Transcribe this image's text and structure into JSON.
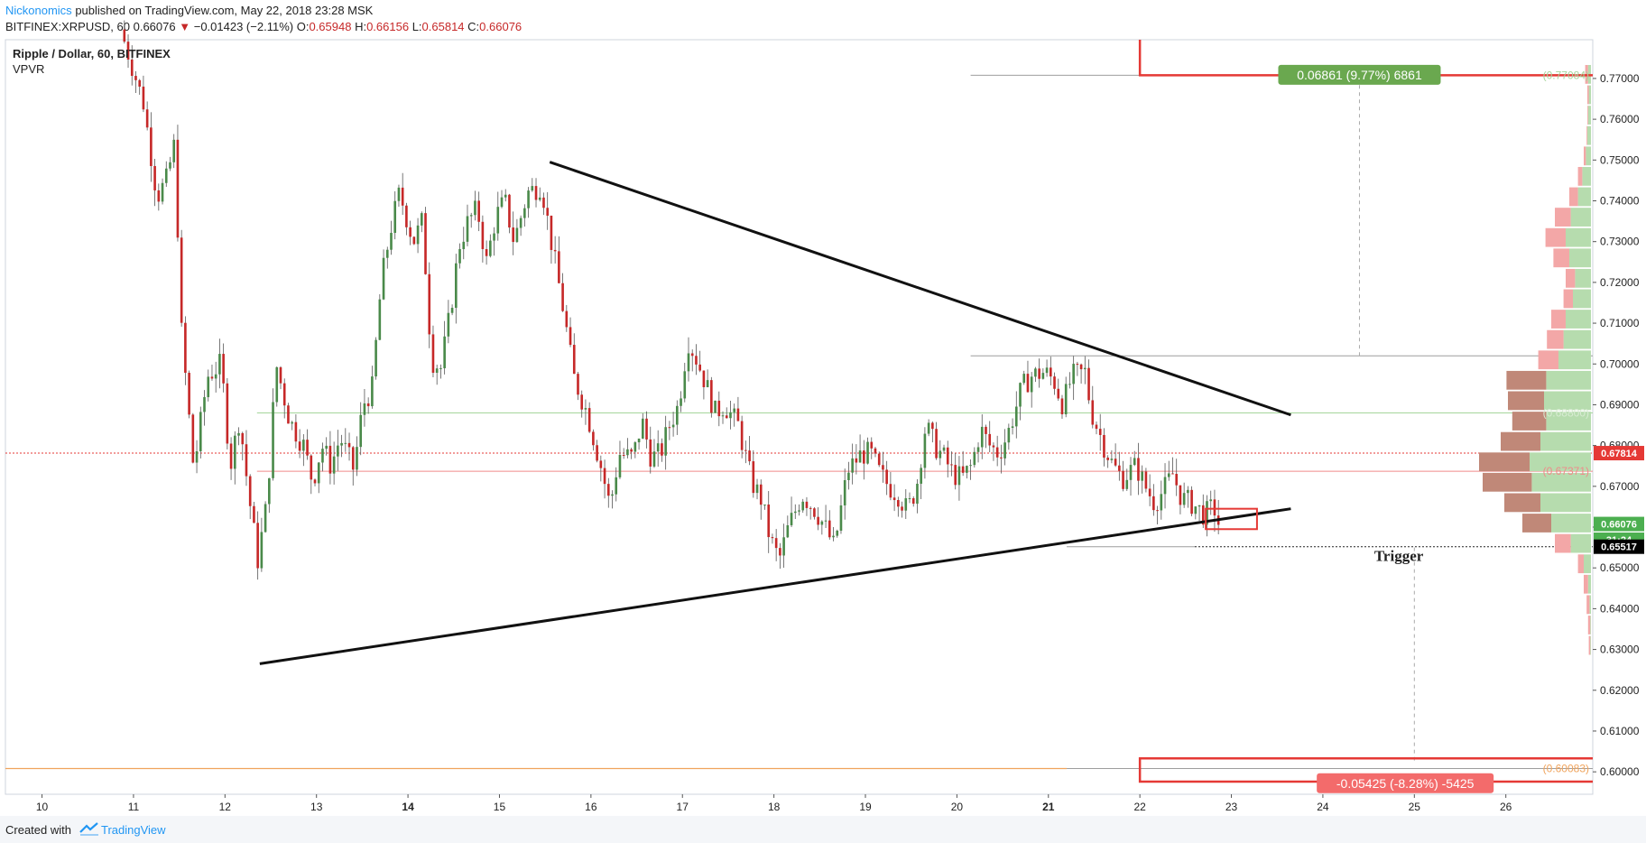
{
  "header": {
    "author": "Nickonomics",
    "published": "published on TradingView.com, May 22, 2018 23:28 MSK",
    "symbol": "BITFINEX:XRPUSD, 60",
    "change": "0.66076",
    "change_arrow": "▼",
    "change_delta": "−0.01423 (−2.11%)",
    "ohlc": {
      "o_label": "O:",
      "o": "0.65948",
      "h_label": "H:",
      "h": "0.66156",
      "l_label": "L:",
      "l": "0.65814",
      "c_label": "C:",
      "c": "0.66076"
    }
  },
  "legend": {
    "title": "Ripple / Dollar, 60, BITFINEX",
    "indicator": "VPVR"
  },
  "footer": {
    "created_with": "Created with",
    "brand": "TradingView"
  },
  "colors": {
    "up": "#4a8a4a",
    "down": "#c62828",
    "accent_green": "#6aa84f",
    "accent_red": "#e53935",
    "vp_green": "#b6dcae",
    "vp_red": "#f3a7a7",
    "vp_brown": "#c08878"
  },
  "chart_data": {
    "type": "candlestick",
    "title": "Ripple / Dollar, 60, BITFINEX",
    "y_range": [
      0.5945,
      0.7795
    ],
    "x_range": [
      9.6,
      26.95
    ],
    "y_ticks": [
      "0.77000",
      "0.76000",
      "0.75000",
      "0.74000",
      "0.73000",
      "0.72000",
      "0.71000",
      "0.70000",
      "0.69000",
      "0.68000",
      "0.67000",
      "0.66000",
      "0.65000",
      "0.64000",
      "0.63000",
      "0.62000",
      "0.61000",
      "0.60000"
    ],
    "x_ticks": [
      {
        "value": 10,
        "label": "10"
      },
      {
        "value": 11,
        "label": "11"
      },
      {
        "value": 12,
        "label": "12"
      },
      {
        "value": 13,
        "label": "13"
      },
      {
        "value": 14,
        "label": "14"
      },
      {
        "value": 15,
        "label": "15"
      },
      {
        "value": 16,
        "label": "16"
      },
      {
        "value": 17,
        "label": "17"
      },
      {
        "value": 18,
        "label": "18"
      },
      {
        "value": 19,
        "label": "19"
      },
      {
        "value": 20,
        "label": "20"
      },
      {
        "value": 21,
        "label": "21"
      },
      {
        "value": 22,
        "label": "22"
      },
      {
        "value": 23,
        "label": "23"
      },
      {
        "value": 24,
        "label": "24"
      },
      {
        "value": 25,
        "label": "25"
      },
      {
        "value": 26,
        "label": "26"
      }
    ],
    "price_path": [
      [
        10.9,
        0.782
      ],
      [
        11.0,
        0.775
      ],
      [
        11.15,
        0.764
      ],
      [
        11.3,
        0.741
      ],
      [
        11.4,
        0.745
      ],
      [
        11.5,
        0.755
      ],
      [
        11.55,
        0.712
      ],
      [
        11.7,
        0.674
      ],
      [
        11.85,
        0.697
      ],
      [
        12.0,
        0.7
      ],
      [
        12.1,
        0.675
      ],
      [
        12.2,
        0.687
      ],
      [
        12.3,
        0.668
      ],
      [
        12.4,
        0.652
      ],
      [
        12.5,
        0.666
      ],
      [
        12.6,
        0.7
      ],
      [
        12.75,
        0.686
      ],
      [
        12.9,
        0.68
      ],
      [
        13.0,
        0.671
      ],
      [
        13.1,
        0.68
      ],
      [
        13.2,
        0.675
      ],
      [
        13.3,
        0.682
      ],
      [
        13.45,
        0.674
      ],
      [
        13.55,
        0.69
      ],
      [
        13.65,
        0.694
      ],
      [
        13.75,
        0.72
      ],
      [
        13.85,
        0.733
      ],
      [
        13.95,
        0.742
      ],
      [
        14.1,
        0.73
      ],
      [
        14.2,
        0.735
      ],
      [
        14.3,
        0.701
      ],
      [
        14.4,
        0.699
      ],
      [
        14.5,
        0.712
      ],
      [
        14.6,
        0.729
      ],
      [
        14.7,
        0.735
      ],
      [
        14.8,
        0.738
      ],
      [
        14.9,
        0.725
      ],
      [
        15.0,
        0.736
      ],
      [
        15.1,
        0.74
      ],
      [
        15.2,
        0.73
      ],
      [
        15.35,
        0.742
      ],
      [
        15.5,
        0.744
      ],
      [
        15.6,
        0.731
      ],
      [
        15.75,
        0.712
      ],
      [
        15.85,
        0.697
      ],
      [
        16.0,
        0.688
      ],
      [
        16.15,
        0.675
      ],
      [
        16.25,
        0.665
      ],
      [
        16.35,
        0.678
      ],
      [
        16.5,
        0.677
      ],
      [
        16.6,
        0.686
      ],
      [
        16.7,
        0.677
      ],
      [
        16.8,
        0.678
      ],
      [
        16.9,
        0.685
      ],
      [
        17.0,
        0.69
      ],
      [
        17.1,
        0.706
      ],
      [
        17.2,
        0.701
      ],
      [
        17.3,
        0.695
      ],
      [
        17.4,
        0.688
      ],
      [
        17.5,
        0.69
      ],
      [
        17.65,
        0.685
      ],
      [
        17.8,
        0.671
      ],
      [
        17.9,
        0.667
      ],
      [
        18.0,
        0.657
      ],
      [
        18.1,
        0.652
      ],
      [
        18.2,
        0.66
      ],
      [
        18.35,
        0.668
      ],
      [
        18.5,
        0.664
      ],
      [
        18.6,
        0.66
      ],
      [
        18.7,
        0.655
      ],
      [
        18.85,
        0.674
      ],
      [
        19.0,
        0.678
      ],
      [
        19.1,
        0.678
      ],
      [
        19.2,
        0.673
      ],
      [
        19.3,
        0.67
      ],
      [
        19.4,
        0.668
      ],
      [
        19.5,
        0.664
      ],
      [
        19.6,
        0.67
      ],
      [
        19.7,
        0.685
      ],
      [
        19.8,
        0.68
      ],
      [
        19.9,
        0.677
      ],
      [
        20.0,
        0.673
      ],
      [
        20.1,
        0.672
      ],
      [
        20.2,
        0.675
      ],
      [
        20.3,
        0.684
      ],
      [
        20.4,
        0.68
      ],
      [
        20.5,
        0.678
      ],
      [
        20.6,
        0.683
      ],
      [
        20.75,
        0.694
      ],
      [
        20.85,
        0.697
      ],
      [
        21.0,
        0.698
      ],
      [
        21.1,
        0.696
      ],
      [
        21.2,
        0.69
      ],
      [
        21.3,
        0.697
      ],
      [
        21.45,
        0.698
      ],
      [
        21.5,
        0.689
      ],
      [
        21.65,
        0.68
      ],
      [
        21.75,
        0.675
      ],
      [
        21.85,
        0.672
      ],
      [
        22.0,
        0.675
      ],
      [
        22.1,
        0.67
      ],
      [
        22.2,
        0.666
      ],
      [
        22.3,
        0.669
      ],
      [
        22.4,
        0.673
      ],
      [
        22.5,
        0.667
      ],
      [
        22.6,
        0.666
      ],
      [
        22.75,
        0.663
      ],
      [
        22.85,
        0.665
      ],
      [
        22.9,
        0.661
      ]
    ],
    "annotations": {
      "triangle_upper": {
        "from": [
          15.55,
          0.7495
        ],
        "to": [
          23.65,
          0.6875
        ]
      },
      "triangle_lower": {
        "from": [
          12.38,
          0.6265
        ],
        "to": [
          23.65,
          0.6645
        ]
      },
      "target_up_label": "0.06861 (9.77%) 6861",
      "target_up_level": "(0.77084)",
      "target_down_label": "-0.05425 (-8.28%) -5425",
      "target_down_level": "(0.60083)",
      "mid_level_1": "(0.67371)",
      "mid_level_2": "(0.68800)",
      "trigger_text": "Trigger"
    },
    "price_tags": {
      "last_red": "0.67814",
      "current": "0.66076",
      "countdown": "31:24",
      "trigger": "0.65517"
    },
    "volume_profile": [
      [
        0.771,
        0.004,
        0.004
      ],
      [
        0.766,
        0.003,
        0.002
      ],
      [
        0.761,
        0.004,
        0.001
      ],
      [
        0.756,
        0.005,
        0.001
      ],
      [
        0.751,
        0.007,
        0.003
      ],
      [
        0.746,
        0.012,
        0.006
      ],
      [
        0.741,
        0.018,
        0.012
      ],
      [
        0.736,
        0.028,
        0.022
      ],
      [
        0.731,
        0.035,
        0.028
      ],
      [
        0.726,
        0.03,
        0.022
      ],
      [
        0.721,
        0.022,
        0.013
      ],
      [
        0.716,
        0.025,
        0.013
      ],
      [
        0.711,
        0.035,
        0.02
      ],
      [
        0.706,
        0.038,
        0.023
      ],
      [
        0.701,
        0.045,
        0.028
      ],
      [
        0.696,
        0.062,
        0.055
      ],
      [
        0.691,
        0.065,
        0.05
      ],
      [
        0.686,
        0.062,
        0.047
      ],
      [
        0.681,
        0.07,
        0.055
      ],
      [
        0.676,
        0.085,
        0.07
      ],
      [
        0.671,
        0.082,
        0.068
      ],
      [
        0.666,
        0.07,
        0.05
      ],
      [
        0.661,
        0.055,
        0.04
      ],
      [
        0.656,
        0.028,
        0.022
      ],
      [
        0.651,
        0.01,
        0.008
      ],
      [
        0.646,
        0.004,
        0.006
      ],
      [
        0.641,
        0.002,
        0.004
      ],
      [
        0.636,
        0.001,
        0.003
      ],
      [
        0.631,
        0.001,
        0.002
      ]
    ]
  }
}
